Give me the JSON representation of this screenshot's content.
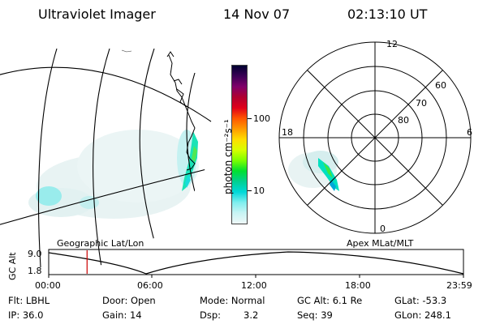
{
  "header": {
    "instrument": "Ultraviolet Imager",
    "date": "14 Nov 07",
    "time": "02:13:10 UT"
  },
  "colorbar": {
    "label": "photon cm⁻²s⁻¹",
    "ticks": [
      "100",
      "10"
    ],
    "colors": [
      "#000030",
      "#3a0055",
      "#80006a",
      "#b00030",
      "#e0001a",
      "#ff5500",
      "#ff9900",
      "#ffdd00",
      "#d8ff00",
      "#7cff00",
      "#00e030",
      "#00d090",
      "#00d8d8",
      "#7feeee",
      "#c8f4f4",
      "#eef8f8"
    ]
  },
  "geo_map": {
    "label": "Geographic Lat/Lon"
  },
  "polar_map": {
    "label": "Apex MLat/MLT",
    "mlt_labels": [
      "12",
      "18",
      "6",
      "0"
    ],
    "lat_labels": [
      "60",
      "70",
      "80"
    ]
  },
  "altitude_plot": {
    "ylabel": "GC Alt",
    "yticks": [
      "9.0",
      "1.8"
    ],
    "xticks": [
      "00:00",
      "06:00",
      "12:00",
      "18:00",
      "23:59"
    ],
    "marker_time_hours": 2.22,
    "marker_color": "#cc0000"
  },
  "info": {
    "filter": "Flt: LBHL",
    "ip": "IP: 36.0",
    "door": "Door: Open",
    "gain": "Gain: 14",
    "mode": "Mode: Normal",
    "dsp_label": "Dsp:",
    "dsp_value": "3.2",
    "gc_alt": "GC Alt: 6.1 Re",
    "seq": "Seq: 39",
    "glat": "GLat: -53.3",
    "glon": "GLon: 248.1"
  }
}
